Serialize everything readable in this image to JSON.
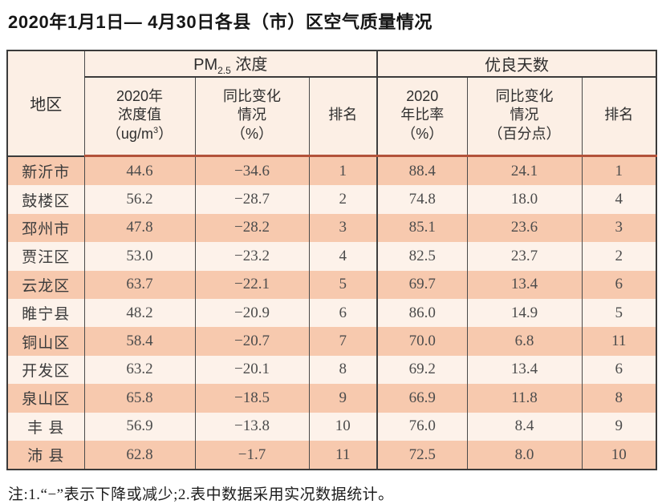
{
  "title": "2020年1月1日— 4月30日各县（市）区空气质量情况",
  "table": {
    "corner_header": "地区",
    "pm_group": {
      "pre": "PM",
      "sub": "2.5",
      "post": " 浓度"
    },
    "good_group": "优良天数",
    "sub_headers": {
      "pm_value": {
        "l1": "2020年",
        "l2": "浓度值",
        "l3_pre": "（ug/m",
        "l3_sup": "3",
        "l3_post": "）"
      },
      "pm_change": {
        "l1": "同比变化",
        "l2": "情况",
        "l3": "（%）"
      },
      "pm_rank": "排名",
      "rate": {
        "l1": "2020",
        "l2": "年比率",
        "l3": "（%）"
      },
      "rate_change": {
        "l1": "同比变化",
        "l2": "情况",
        "l3": "（百分点）"
      },
      "rate_rank": "排名"
    },
    "rows": [
      {
        "region": "新沂市",
        "pm_value": "44.6",
        "pm_change": "−34.6",
        "pm_rank": "1",
        "rate": "88.4",
        "rate_change": "24.1",
        "rate_rank": "1"
      },
      {
        "region": "鼓楼区",
        "pm_value": "56.2",
        "pm_change": "−28.7",
        "pm_rank": "2",
        "rate": "74.8",
        "rate_change": "18.0",
        "rate_rank": "4"
      },
      {
        "region": "邳州市",
        "pm_value": "47.8",
        "pm_change": "−28.2",
        "pm_rank": "3",
        "rate": "85.1",
        "rate_change": "23.6",
        "rate_rank": "3"
      },
      {
        "region": "贾汪区",
        "pm_value": "53.0",
        "pm_change": "−23.2",
        "pm_rank": "4",
        "rate": "82.5",
        "rate_change": "23.7",
        "rate_rank": "2"
      },
      {
        "region": "云龙区",
        "pm_value": "63.7",
        "pm_change": "−22.1",
        "pm_rank": "5",
        "rate": "69.7",
        "rate_change": "13.4",
        "rate_rank": "6"
      },
      {
        "region": "睢宁县",
        "pm_value": "48.2",
        "pm_change": "−20.9",
        "pm_rank": "6",
        "rate": "86.0",
        "rate_change": "14.9",
        "rate_rank": "5"
      },
      {
        "region": "铜山区",
        "pm_value": "58.4",
        "pm_change": "−20.7",
        "pm_rank": "7",
        "rate": "70.0",
        "rate_change": "6.8",
        "rate_rank": "11"
      },
      {
        "region": "开发区",
        "pm_value": "63.2",
        "pm_change": "−20.1",
        "pm_rank": "8",
        "rate": "69.2",
        "rate_change": "13.4",
        "rate_rank": "6"
      },
      {
        "region": "泉山区",
        "pm_value": "65.8",
        "pm_change": "−18.5",
        "pm_rank": "9",
        "rate": "66.9",
        "rate_change": "11.8",
        "rate_rank": "8"
      },
      {
        "region": "丰 县",
        "pm_value": "56.9",
        "pm_change": "−13.8",
        "pm_rank": "10",
        "rate": "76.0",
        "rate_change": "8.4",
        "rate_rank": "9"
      },
      {
        "region": "沛 县",
        "pm_value": "62.8",
        "pm_change": "−1.7",
        "pm_rank": "11",
        "rate": "72.5",
        "rate_change": "8.0",
        "rate_rank": "10"
      }
    ]
  },
  "note": "注:1.“−”表示下降或减少;2.表中数据采用实况数据统计。",
  "colors": {
    "row_odd": "#f7c9ae",
    "row_even": "#fdf2ea",
    "header_bg": "#fcefe5",
    "header_divider": "#b3523a",
    "border": "#3b3b3b"
  }
}
